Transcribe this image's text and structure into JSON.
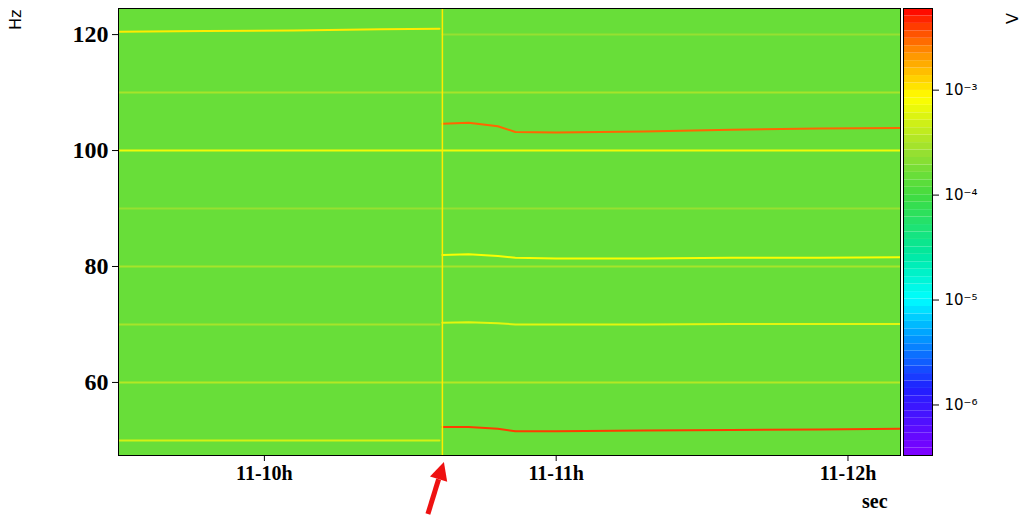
{
  "chart_data": {
    "type": "spectrogram",
    "xlabel": "sec",
    "ylabel": "Hz",
    "xlim": [
      9.5,
      12.18
    ],
    "xticks": [
      {
        "value": 10,
        "label": "11-10h"
      },
      {
        "value": 11,
        "label": "11-11h"
      },
      {
        "value": 12,
        "label": "11-12h"
      }
    ],
    "ylim": [
      47.4,
      124.5
    ],
    "yticks": [
      60,
      80,
      100,
      120
    ],
    "log": "color",
    "background_level": 0.00015,
    "series": [
      {
        "x": [
          10.61,
          10.7,
          10.8,
          10.86,
          11.0,
          11.3,
          11.6,
          11.9,
          12.18
        ],
        "values": [
          52.3,
          52.3,
          52.0,
          51.6,
          51.6,
          51.7,
          51.8,
          51.9,
          52.0
        ],
        "level": 0.004
      },
      {
        "x": [
          10.61,
          10.7,
          10.8,
          10.86,
          11.0,
          11.3,
          11.6,
          11.9,
          12.18
        ],
        "values": [
          104.6,
          104.8,
          104.2,
          103.2,
          103.1,
          103.3,
          103.6,
          103.8,
          103.9
        ],
        "level": 0.003
      },
      {
        "x": [
          10.61,
          10.7,
          10.8,
          10.86,
          11.0,
          11.3,
          11.6,
          11.9,
          12.18
        ],
        "values": [
          82.0,
          82.1,
          81.8,
          81.5,
          81.4,
          81.4,
          81.5,
          81.5,
          81.6
        ],
        "level": 0.0008
      },
      {
        "x": [
          10.61,
          10.7,
          10.8,
          10.86,
          11.0,
          11.3,
          11.6,
          11.9,
          12.18
        ],
        "values": [
          70.3,
          70.4,
          70.2,
          70.0,
          70.0,
          70.0,
          70.1,
          70.1,
          70.1
        ],
        "level": 0.0006
      },
      {
        "x": [
          9.5,
          9.8,
          10.1,
          10.4,
          10.6
        ],
        "values": [
          120.5,
          120.6,
          120.7,
          120.9,
          121.0
        ],
        "level": 0.001
      },
      {
        "x": [
          9.5,
          10.6
        ],
        "values": [
          50,
          50
        ],
        "level": 0.0005
      },
      {
        "x": [
          9.5,
          10.6
        ],
        "values": [
          70,
          70
        ],
        "level": 0.0003
      },
      {
        "x": [
          9.5,
          12.18
        ],
        "values": [
          100,
          100
        ],
        "level": 0.0007
      },
      {
        "x": [
          9.5,
          12.18
        ],
        "values": [
          110,
          110
        ],
        "level": 0.0003
      },
      {
        "x": [
          9.5,
          12.18
        ],
        "values": [
          90,
          90
        ],
        "level": 0.00025
      },
      {
        "x": [
          9.5,
          12.18
        ],
        "values": [
          80,
          80
        ],
        "level": 0.0003
      },
      {
        "x": [
          9.5,
          12.18
        ],
        "values": [
          60,
          60
        ],
        "level": 0.00035
      },
      {
        "x": [
          10.61,
          12.18
        ],
        "values": [
          120,
          120
        ],
        "level": 0.00025
      }
    ],
    "event": {
      "x": 10.61,
      "level": 0.001
    },
    "colorbar": {
      "label": "V",
      "range": [
        3.3e-07,
        0.006
      ],
      "ticks": [
        {
          "value": 1e-06,
          "label": "10⁻⁶"
        },
        {
          "value": 1e-05,
          "label": "10⁻⁵"
        },
        {
          "value": 0.0001,
          "label": "10⁻⁴"
        },
        {
          "value": 0.001,
          "label": "10⁻³"
        }
      ]
    }
  }
}
